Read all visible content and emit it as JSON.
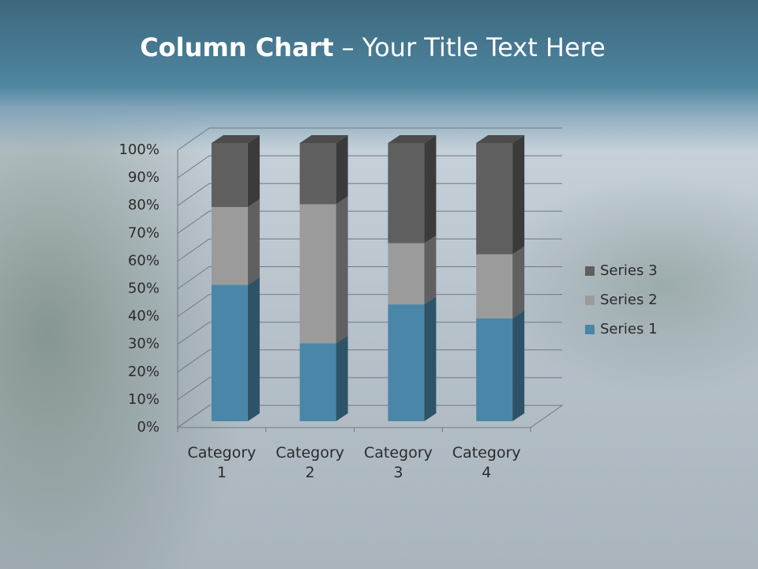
{
  "chart_data": {
    "type": "stacked-bar-3d",
    "title": [
      "Column Chart",
      "– Your Title Text Here"
    ],
    "categories": [
      "Category 1",
      "Category 2",
      "Category 3",
      "Category 4"
    ],
    "series": [
      {
        "name": "Series 1",
        "color": "#4a86a8",
        "values": [
          49,
          28,
          42,
          37
        ]
      },
      {
        "name": "Series 2",
        "color": "#9b9b9b",
        "values": [
          28,
          50,
          22,
          23
        ]
      },
      {
        "name": "Series 3",
        "color": "#5f5f5f",
        "values": [
          23,
          22,
          36,
          40
        ]
      }
    ],
    "ylim": [
      0,
      100
    ],
    "yticks": [
      {
        "value": 0,
        "label": "0%"
      },
      {
        "value": 10,
        "label": "10%"
      },
      {
        "value": 20,
        "label": "20%"
      },
      {
        "value": 30,
        "label": "30%"
      },
      {
        "value": 40,
        "label": "40%"
      },
      {
        "value": 50,
        "label": "50%"
      },
      {
        "value": 60,
        "label": "60%"
      },
      {
        "value": 70,
        "label": "70%"
      },
      {
        "value": 80,
        "label": "80%"
      },
      {
        "value": 90,
        "label": "90%"
      },
      {
        "value": 100,
        "label": "100%"
      }
    ],
    "grid": true,
    "legend": "right"
  }
}
